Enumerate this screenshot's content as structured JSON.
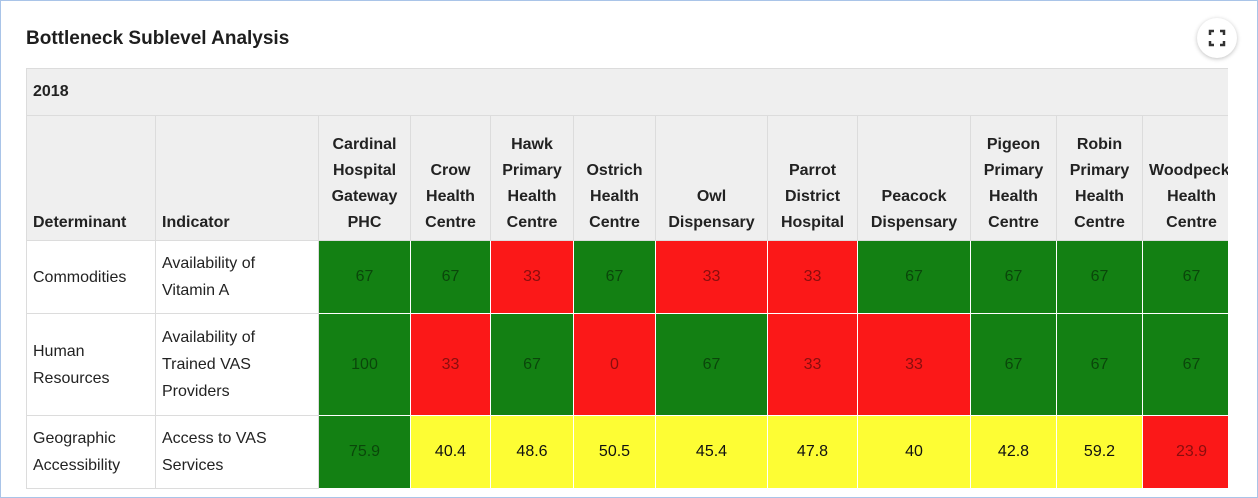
{
  "header": {
    "title": "Bottleneck Sublevel Analysis"
  },
  "table": {
    "year": "2018",
    "headers": [
      "Determinant",
      "Indicator"
    ],
    "columns": [
      "Cardinal Hospital Gateway PHC",
      "Crow Health Centre",
      "Hawk Primary Health Centre",
      "Ostrich Health Centre",
      "Owl Dispensary",
      "Parrot District Hospital",
      "Peacock Dispensary",
      "Pigeon Primary Health Centre",
      "Robin Primary Health Centre",
      "Woodpecker Health Centre"
    ],
    "rows": [
      {
        "determinant": "Commodities",
        "indicator": "Availability of Vitamin A",
        "cells": [
          {
            "value": 67,
            "color": "#138013"
          },
          {
            "value": 67,
            "color": "#138013"
          },
          {
            "value": 33,
            "color": "#fb1818"
          },
          {
            "value": 67,
            "color": "#138013"
          },
          {
            "value": 33,
            "color": "#fb1818"
          },
          {
            "value": 33,
            "color": "#fb1818"
          },
          {
            "value": 67,
            "color": "#138013"
          },
          {
            "value": 67,
            "color": "#138013"
          },
          {
            "value": 67,
            "color": "#138013"
          },
          {
            "value": 67,
            "color": "#138013"
          }
        ]
      },
      {
        "determinant": "Human Resources",
        "indicator": "Availability of Trained VAS Providers",
        "cells": [
          {
            "value": 100,
            "color": "#138013"
          },
          {
            "value": 33,
            "color": "#fb1818"
          },
          {
            "value": 67,
            "color": "#138013"
          },
          {
            "value": 0,
            "color": "#fb1818"
          },
          {
            "value": 67,
            "color": "#138013"
          },
          {
            "value": 33,
            "color": "#fb1818"
          },
          {
            "value": 33,
            "color": "#fb1818"
          },
          {
            "value": 67,
            "color": "#138013"
          },
          {
            "value": 67,
            "color": "#138013"
          },
          {
            "value": 67,
            "color": "#138013"
          }
        ]
      },
      {
        "determinant": "Geographic Accessibility",
        "indicator": "Access to VAS Services",
        "cells": [
          {
            "value": 75.9,
            "color": "#138013"
          },
          {
            "value": 40.4,
            "color": "#fdfd34"
          },
          {
            "value": 48.6,
            "color": "#fdfd34"
          },
          {
            "value": 50.5,
            "color": "#fdfd34"
          },
          {
            "value": 45.4,
            "color": "#fdfd34"
          },
          {
            "value": 47.8,
            "color": "#fdfd34"
          },
          {
            "value": 40,
            "color": "#fdfd34"
          },
          {
            "value": 42.8,
            "color": "#fdfd34"
          },
          {
            "value": 59.2,
            "color": "#fdfd34"
          },
          {
            "value": 23.9,
            "color": "#fb1818"
          }
        ]
      }
    ]
  }
}
